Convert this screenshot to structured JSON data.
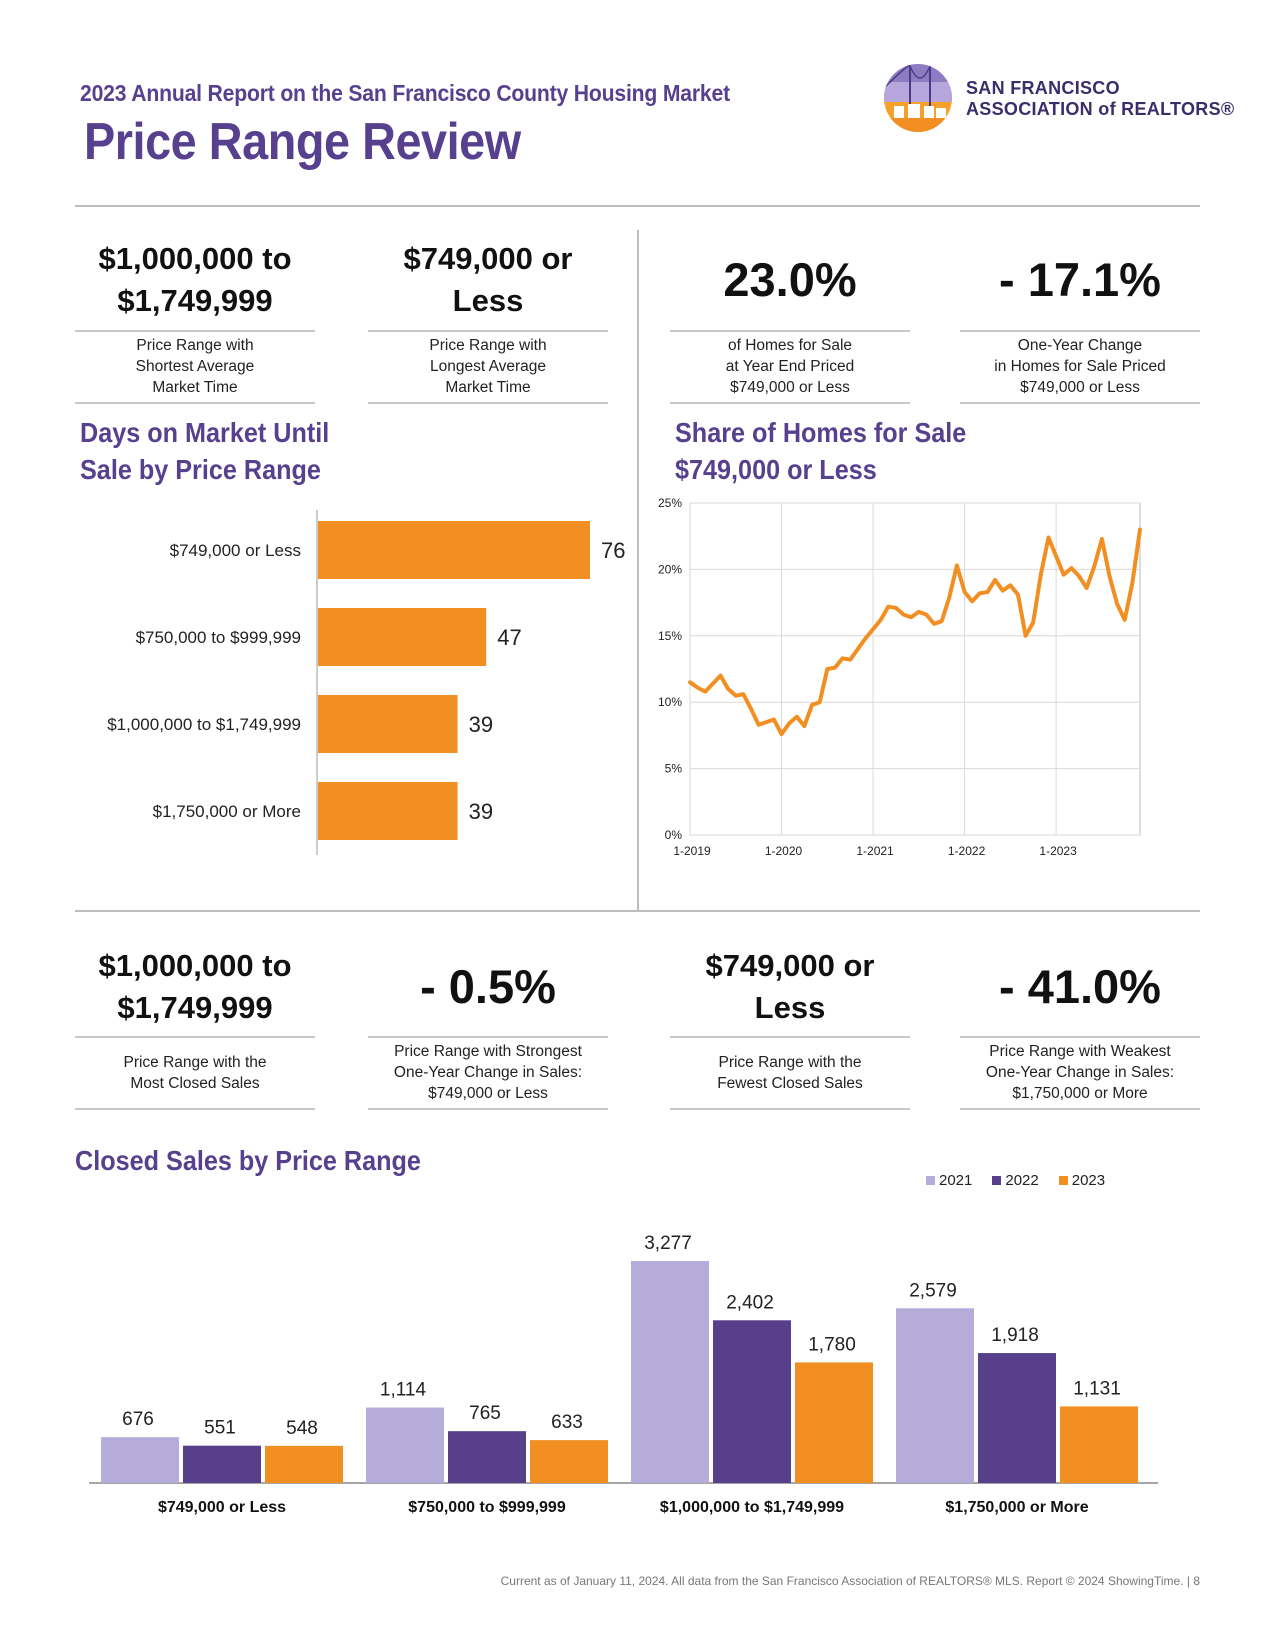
{
  "header": {
    "report_title": "2023 Annual Report on the San Francisco County Housing Market",
    "page_title": "Price Range Review",
    "logo_line1": "SAN FRANCISCO",
    "logo_line2": "ASSOCIATION of REALTORS®"
  },
  "colors": {
    "purple": "#57418f",
    "orange": "#f18f22",
    "lavender": "#b5acd9",
    "dark_purple": "#573f8c"
  },
  "top_stats": [
    {
      "value_line1": "$1,000,000 to",
      "value_line2": "$1,749,999",
      "desc_line1": "Price Range with",
      "desc_line2": "Shortest Average",
      "desc_line3": "Market Time"
    },
    {
      "value_line1": "$749,000 or",
      "value_line2": "Less",
      "desc_line1": "Price Range with",
      "desc_line2": "Longest Average",
      "desc_line3": "Market Time"
    },
    {
      "value": "23.0%",
      "desc_line1": "of Homes for Sale",
      "desc_line2": "at Year End Priced",
      "desc_line3": "$749,000 or Less"
    },
    {
      "value": "- 17.1%",
      "desc_line1": "One-Year Change",
      "desc_line2": "in Homes for Sale Priced",
      "desc_line3": "$749,000 or Less"
    }
  ],
  "bottom_stats": [
    {
      "value_line1": "$1,000,000 to",
      "value_line2": "$1,749,999",
      "desc_line1": "Price Range with the",
      "desc_line2": "Most Closed Sales"
    },
    {
      "value": "- 0.5%",
      "desc_line1": "Price Range with Strongest",
      "desc_line2": "One-Year Change in Sales:",
      "desc_line3": "$749,000 or Less"
    },
    {
      "value_line1": "$749,000 or",
      "value_line2": "Less",
      "desc_line1": "Price Range with the",
      "desc_line2": "Fewest Closed Sales"
    },
    {
      "value": "- 41.0%",
      "desc_line1": "Price Range with Weakest",
      "desc_line2": "One-Year Change in Sales:",
      "desc_line3": "$1,750,000 or More"
    }
  ],
  "sections": {
    "dom_title_line1": "Days on Market Until",
    "dom_title_line2": "Sale by Price Range",
    "share_title_line1": "Share of Homes for Sale",
    "share_title_line2": "$749,000 or Less",
    "closed_title": "Closed Sales by Price Range"
  },
  "footer": "Current as of January 11, 2024. All data from the San Francisco Association of REALTORS® MLS. Report © 2024 ShowingTime.  |  8",
  "chart_data": [
    {
      "type": "bar",
      "orientation": "horizontal",
      "title": "Days on Market Until Sale by Price Range",
      "categories": [
        "$749,000 or Less",
        "$750,000 to $999,999",
        "$1,000,000 to $1,749,999",
        "$1,750,000 or More"
      ],
      "values": [
        76,
        47,
        39,
        39
      ],
      "color": "#f18f22"
    },
    {
      "type": "line",
      "title": "Share of Homes for Sale $749,000 or Less",
      "x_tick_labels": [
        "1-2019",
        "1-2020",
        "1-2021",
        "1-2022",
        "1-2023"
      ],
      "y_tick_labels": [
        "0%",
        "5%",
        "10%",
        "15%",
        "20%",
        "25%"
      ],
      "ylim": [
        0,
        25
      ],
      "grid": true,
      "color": "#f18f22",
      "x": [
        "2019-01",
        "2019-02",
        "2019-03",
        "2019-04",
        "2019-05",
        "2019-06",
        "2019-07",
        "2019-08",
        "2019-09",
        "2019-10",
        "2019-11",
        "2019-12",
        "2020-01",
        "2020-02",
        "2020-03",
        "2020-04",
        "2020-05",
        "2020-06",
        "2020-07",
        "2020-08",
        "2020-09",
        "2020-10",
        "2020-11",
        "2020-12",
        "2021-01",
        "2021-02",
        "2021-03",
        "2021-04",
        "2021-05",
        "2021-06",
        "2021-07",
        "2021-08",
        "2021-09",
        "2021-10",
        "2021-11",
        "2021-12",
        "2022-01",
        "2022-02",
        "2022-03",
        "2022-04",
        "2022-05",
        "2022-06",
        "2022-07",
        "2022-08",
        "2022-09",
        "2022-10",
        "2022-11",
        "2022-12",
        "2023-01",
        "2023-02",
        "2023-03",
        "2023-04",
        "2023-05",
        "2023-06",
        "2023-07",
        "2023-08",
        "2023-09",
        "2023-10",
        "2023-11",
        "2023-12"
      ],
      "values": [
        11.5,
        11.1,
        10.8,
        11.4,
        12.0,
        11.0,
        10.5,
        10.6,
        9.5,
        8.3,
        8.5,
        8.7,
        7.6,
        8.4,
        8.9,
        8.2,
        9.8,
        10.0,
        12.5,
        12.6,
        13.3,
        13.2,
        14.0,
        14.8,
        15.5,
        16.2,
        17.2,
        17.1,
        16.6,
        16.4,
        16.8,
        16.6,
        15.9,
        16.1,
        17.9,
        20.3,
        18.3,
        17.6,
        18.2,
        18.3,
        19.2,
        18.4,
        18.8,
        18.1,
        15.0,
        16.0,
        19.6,
        22.4,
        21.0,
        19.6,
        20.1,
        19.5,
        18.6,
        20.2,
        22.3,
        19.5,
        17.4,
        16.2,
        19.0,
        23.0
      ]
    },
    {
      "type": "bar",
      "title": "Closed Sales by Price Range",
      "categories": [
        "$749,000 or Less",
        "$750,000 to $999,999",
        "$1,000,000 to $1,749,999",
        "$1,750,000 or More"
      ],
      "series": [
        {
          "name": "2021",
          "values": [
            676,
            1114,
            3277,
            2579
          ],
          "color": "#b5acd9"
        },
        {
          "name": "2022",
          "values": [
            551,
            765,
            2402,
            1918
          ],
          "color": "#573f8c"
        },
        {
          "name": "2023",
          "values": [
            548,
            633,
            1780,
            1131
          ],
          "color": "#f18f22"
        }
      ],
      "legend": "top-right"
    }
  ]
}
